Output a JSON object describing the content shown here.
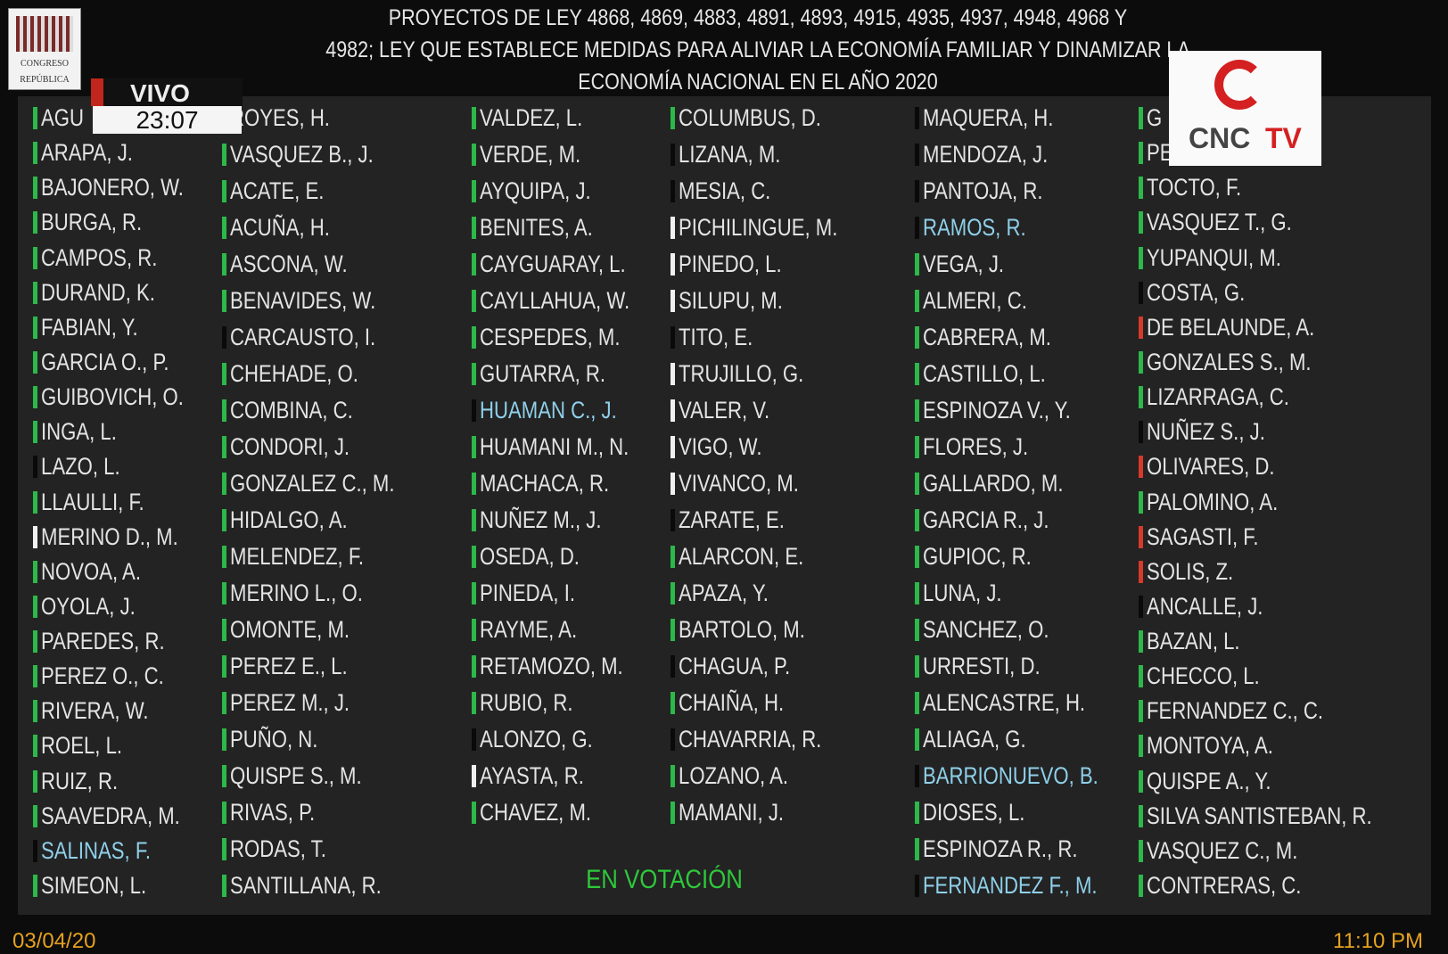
{
  "header": {
    "title": [
      "PROYECTOS DE LEY 4868, 4869, 4883, 4891, 4893, 4915, 4935, 4937, 4948, 4968 Y",
      "4982; LEY QUE ESTABLECE MEDIDAS PARA ALIVIAR LA ECONOMÍA FAMILIAR Y DINAMIZAR LA",
      "ECONOMÍA NACIONAL EN EL AÑO 2020"
    ]
  },
  "logo": {
    "line1": "CONGRESO",
    "line2": "REPÚBLICA"
  },
  "live": {
    "label": "VIVO",
    "time": "23:07"
  },
  "channel": {
    "name": "CNC",
    "suffix": "TV"
  },
  "columns": [
    [
      {
        "name": "AGU",
        "marker": "#2db84a"
      },
      {
        "name": "ARAPA, J.",
        "marker": "#2db84a"
      },
      {
        "name": "BAJONERO, W.",
        "marker": "#2db84a"
      },
      {
        "name": "BURGA, R.",
        "marker": "#2db84a"
      },
      {
        "name": "CAMPOS, R.",
        "marker": "#2db84a"
      },
      {
        "name": "DURAND, K.",
        "marker": "#2db84a"
      },
      {
        "name": "FABIAN, Y.",
        "marker": "#2db84a"
      },
      {
        "name": "GARCIA O., P.",
        "marker": "#2db84a"
      },
      {
        "name": "GUIBOVICH, O.",
        "marker": "#2db84a"
      },
      {
        "name": "INGA, L.",
        "marker": "#2db84a"
      },
      {
        "name": "LAZO, L.",
        "marker": "#0a0a0a"
      },
      {
        "name": "LLAULLI, F.",
        "marker": "#2db84a"
      },
      {
        "name": "MERINO D., M.",
        "marker": "#f0f0f0"
      },
      {
        "name": "NOVOA, A.",
        "marker": "#2db84a"
      },
      {
        "name": "OYOLA, J.",
        "marker": "#2db84a"
      },
      {
        "name": "PAREDES, R.",
        "marker": "#2db84a"
      },
      {
        "name": "PEREZ O., C.",
        "marker": "#2db84a"
      },
      {
        "name": "RIVERA, W.",
        "marker": "#2db84a"
      },
      {
        "name": "ROEL, L.",
        "marker": "#2db84a"
      },
      {
        "name": "RUIZ, R.",
        "marker": "#2db84a"
      },
      {
        "name": "SAAVEDRA, M.",
        "marker": "#2db84a"
      },
      {
        "name": "SALINAS, F.",
        "marker": "#0a0a0a",
        "name_color": "#8fd0ea"
      },
      {
        "name": "SIMEON, L.",
        "marker": "#2db84a"
      }
    ],
    [
      {
        "name": "ROYES, H.",
        "marker": "#2db84a"
      },
      {
        "name": "VASQUEZ B., J.",
        "marker": "#2db84a"
      },
      {
        "name": "ACATE, E.",
        "marker": "#2db84a"
      },
      {
        "name": "ACUÑA, H.",
        "marker": "#2db84a"
      },
      {
        "name": "ASCONA, W.",
        "marker": "#2db84a"
      },
      {
        "name": "BENAVIDES, W.",
        "marker": "#2db84a"
      },
      {
        "name": "CARCAUSTO, I.",
        "marker": "#0a0a0a"
      },
      {
        "name": "CHEHADE, O.",
        "marker": "#2db84a"
      },
      {
        "name": "COMBINA, C.",
        "marker": "#2db84a"
      },
      {
        "name": "CONDORI, J.",
        "marker": "#2db84a"
      },
      {
        "name": "GONZALEZ C., M.",
        "marker": "#2db84a"
      },
      {
        "name": "HIDALGO, A.",
        "marker": "#2db84a"
      },
      {
        "name": "MELENDEZ, F.",
        "marker": "#2db84a"
      },
      {
        "name": "MERINO L., O.",
        "marker": "#2db84a"
      },
      {
        "name": "OMONTE, M.",
        "marker": "#2db84a"
      },
      {
        "name": "PEREZ E., L.",
        "marker": "#2db84a"
      },
      {
        "name": "PEREZ M., J.",
        "marker": "#2db84a"
      },
      {
        "name": "PUÑO, N.",
        "marker": "#2db84a"
      },
      {
        "name": "QUISPE S., M.",
        "marker": "#2db84a"
      },
      {
        "name": "RIVAS, P.",
        "marker": "#2db84a"
      },
      {
        "name": "RODAS, T.",
        "marker": "#2db84a"
      },
      {
        "name": "SANTILLANA, R.",
        "marker": "#2db84a"
      }
    ],
    [
      {
        "name": "VALDEZ, L.",
        "marker": "#2db84a"
      },
      {
        "name": "VERDE, M.",
        "marker": "#2db84a"
      },
      {
        "name": "AYQUIPA, J.",
        "marker": "#2db84a"
      },
      {
        "name": "BENITES, A.",
        "marker": "#2db84a"
      },
      {
        "name": "CAYGUARAY, L.",
        "marker": "#2db84a"
      },
      {
        "name": "CAYLLAHUA, W.",
        "marker": "#2db84a"
      },
      {
        "name": "CESPEDES, M.",
        "marker": "#2db84a"
      },
      {
        "name": "GUTARRA, R.",
        "marker": "#2db84a"
      },
      {
        "name": "HUAMAN C., J.",
        "marker": "#0a0a0a",
        "name_color": "#8fd0ea"
      },
      {
        "name": "HUAMANI M., N.",
        "marker": "#2db84a"
      },
      {
        "name": "MACHACA, R.",
        "marker": "#2db84a"
      },
      {
        "name": "NUÑEZ M., J.",
        "marker": "#2db84a"
      },
      {
        "name": "OSEDA, D.",
        "marker": "#2db84a"
      },
      {
        "name": "PINEDA, I.",
        "marker": "#2db84a"
      },
      {
        "name": "RAYME, A.",
        "marker": "#2db84a"
      },
      {
        "name": "RETAMOZO, M.",
        "marker": "#2db84a"
      },
      {
        "name": "RUBIO, R.",
        "marker": "#2db84a"
      },
      {
        "name": "ALONZO, G.",
        "marker": "#0a0a0a"
      },
      {
        "name": "AYASTA, R.",
        "marker": "#f0f0f0"
      },
      {
        "name": "CHAVEZ, M.",
        "marker": "#2db84a"
      }
    ],
    [
      {
        "name": "COLUMBUS, D.",
        "marker": "#2db84a"
      },
      {
        "name": "LIZANA, M.",
        "marker": "#0a0a0a"
      },
      {
        "name": "MESIA, C.",
        "marker": "#0a0a0a"
      },
      {
        "name": "PICHILINGUE, M.",
        "marker": "#f0f0f0"
      },
      {
        "name": "PINEDO, L.",
        "marker": "#f0f0f0"
      },
      {
        "name": "SILUPU, M.",
        "marker": "#f0f0f0"
      },
      {
        "name": "TITO, E.",
        "marker": "#0a0a0a"
      },
      {
        "name": "TRUJILLO, G.",
        "marker": "#f0f0f0"
      },
      {
        "name": "VALER, V.",
        "marker": "#f0f0f0"
      },
      {
        "name": "VIGO, W.",
        "marker": "#f0f0f0"
      },
      {
        "name": "VIVANCO, M.",
        "marker": "#f0f0f0"
      },
      {
        "name": "ZARATE, E.",
        "marker": "#0a0a0a"
      },
      {
        "name": "ALARCON, E.",
        "marker": "#2db84a"
      },
      {
        "name": "APAZA, Y.",
        "marker": "#2db84a"
      },
      {
        "name": "BARTOLO, M.",
        "marker": "#2db84a"
      },
      {
        "name": "CHAGUA, P.",
        "marker": "#0a0a0a"
      },
      {
        "name": "CHAIÑA, H.",
        "marker": "#2db84a"
      },
      {
        "name": "CHAVARRIA, R.",
        "marker": "#0a0a0a"
      },
      {
        "name": "LOZANO, A.",
        "marker": "#2db84a"
      },
      {
        "name": "MAMANI, J.",
        "marker": "#2db84a"
      }
    ],
    [
      {
        "name": "MAQUERA, H.",
        "marker": "#0a0a0a"
      },
      {
        "name": "MENDOZA, J.",
        "marker": "#0a0a0a"
      },
      {
        "name": "PANTOJA, R.",
        "marker": "#0a0a0a"
      },
      {
        "name": "RAMOS, R.",
        "marker": "#0a0a0a",
        "name_color": "#8fd0ea"
      },
      {
        "name": "VEGA, J.",
        "marker": "#2db84a"
      },
      {
        "name": "ALMERI, C.",
        "marker": "#2db84a"
      },
      {
        "name": "CABRERA, M.",
        "marker": "#2db84a"
      },
      {
        "name": "CASTILLO, L.",
        "marker": "#2db84a"
      },
      {
        "name": "ESPINOZA V., Y.",
        "marker": "#2db84a"
      },
      {
        "name": "FLORES, J.",
        "marker": "#2db84a"
      },
      {
        "name": "GALLARDO, M.",
        "marker": "#2db84a"
      },
      {
        "name": "GARCIA R., J.",
        "marker": "#2db84a"
      },
      {
        "name": "GUPIOC, R.",
        "marker": "#2db84a"
      },
      {
        "name": "LUNA, J.",
        "marker": "#2db84a"
      },
      {
        "name": "SANCHEZ, O.",
        "marker": "#2db84a"
      },
      {
        "name": "URRESTI, D.",
        "marker": "#2db84a"
      },
      {
        "name": "ALENCASTRE, H.",
        "marker": "#2db84a"
      },
      {
        "name": "ALIAGA, G.",
        "marker": "#2db84a"
      },
      {
        "name": "BARRIONUEVO, B.",
        "marker": "#0a0a0a",
        "name_color": "#8fd0ea"
      },
      {
        "name": "DIOSES, L.",
        "marker": "#2db84a"
      },
      {
        "name": "ESPINOZA R., R.",
        "marker": "#2db84a"
      },
      {
        "name": "FERNANDEZ F., M.",
        "marker": "#0a0a0a",
        "name_color": "#8fd0ea"
      }
    ],
    [
      {
        "name": "G",
        "marker": "#2db84a"
      },
      {
        "name": "PE",
        "marker": "#2db84a"
      },
      {
        "name": "TOCTO, F.",
        "marker": "#2db84a"
      },
      {
        "name": "VASQUEZ T., G.",
        "marker": "#2db84a"
      },
      {
        "name": "YUPANQUI, M.",
        "marker": "#2db84a"
      },
      {
        "name": "COSTA, G.",
        "marker": "#0a0a0a"
      },
      {
        "name": "DE BELAUNDE, A.",
        "marker": "#d63a2a"
      },
      {
        "name": "GONZALES S., M.",
        "marker": "#2db84a"
      },
      {
        "name": "LIZARRAGA, C.",
        "marker": "#2db84a"
      },
      {
        "name": "NUÑEZ S., J.",
        "marker": "#0a0a0a"
      },
      {
        "name": "OLIVARES, D.",
        "marker": "#d63a2a"
      },
      {
        "name": "PALOMINO, A.",
        "marker": "#2db84a"
      },
      {
        "name": "SAGASTI, F.",
        "marker": "#d63a2a"
      },
      {
        "name": "SOLIS, Z.",
        "marker": "#d63a2a"
      },
      {
        "name": "ANCALLE, J.",
        "marker": "#0a0a0a"
      },
      {
        "name": "BAZAN, L.",
        "marker": "#2db84a"
      },
      {
        "name": "CHECCO, L.",
        "marker": "#2db84a"
      },
      {
        "name": "FERNANDEZ C., C.",
        "marker": "#2db84a"
      },
      {
        "name": "MONTOYA, A.",
        "marker": "#2db84a"
      },
      {
        "name": "QUISPE A., Y.",
        "marker": "#2db84a"
      },
      {
        "name": "SILVA SANTISTEBAN, R.",
        "marker": "#2db84a"
      },
      {
        "name": "VASQUEZ C., M.",
        "marker": "#2db84a"
      },
      {
        "name": "CONTRERAS, C.",
        "marker": "#2db84a"
      }
    ]
  ],
  "status": "EN VOTACIÓN",
  "footer": {
    "date": "03/04/20",
    "time": "11:10 PM"
  }
}
